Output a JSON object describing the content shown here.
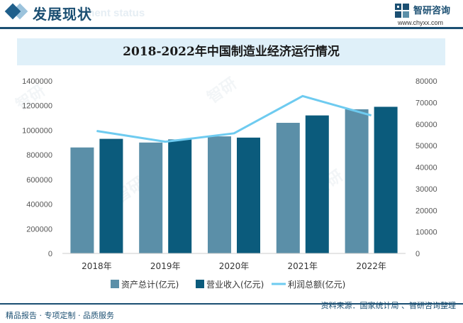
{
  "header": {
    "title": "发展现状",
    "subtitle": "ment status",
    "logo_name": "智研咨询",
    "logo_url": "www.chyxx.com"
  },
  "footer": {
    "left": "精品报告 · 专项定制 · 品质服务",
    "right": "资料来源：国家统计局 、智研咨询整理"
  },
  "colors": {
    "assets": "#5b8fa8",
    "revenue": "#0b5b7c",
    "profit": "#6ecbf0",
    "brand": "#1b4f72"
  },
  "chart_data": {
    "type": "bar",
    "title": "2018-2022年中国制造业经济运行情况",
    "categories": [
      "2018年",
      "2019年",
      "2020年",
      "2021年",
      "2022年"
    ],
    "series": [
      {
        "name": "资产总计(亿元)",
        "type": "bar",
        "axis": "left",
        "values": [
          860000,
          900000,
          950000,
          1060000,
          1170000
        ]
      },
      {
        "name": "营业收入(亿元)",
        "type": "bar",
        "axis": "left",
        "values": [
          930000,
          925000,
          940000,
          1120000,
          1190000
        ]
      },
      {
        "name": "利润总额(亿元)",
        "type": "line",
        "axis": "right",
        "values": [
          56800,
          51800,
          55700,
          73000,
          64000
        ]
      }
    ],
    "y_left": {
      "min": 0,
      "max": 1400000,
      "ticks": [
        "0",
        "200000",
        "400000",
        "600000",
        "800000",
        "1000000",
        "1200000",
        "1400000"
      ]
    },
    "y_right": {
      "min": 0,
      "max": 80000,
      "ticks": [
        "0",
        "10000",
        "20000",
        "30000",
        "40000",
        "50000",
        "60000",
        "70000",
        "80000"
      ]
    },
    "legend_position": "bottom"
  }
}
